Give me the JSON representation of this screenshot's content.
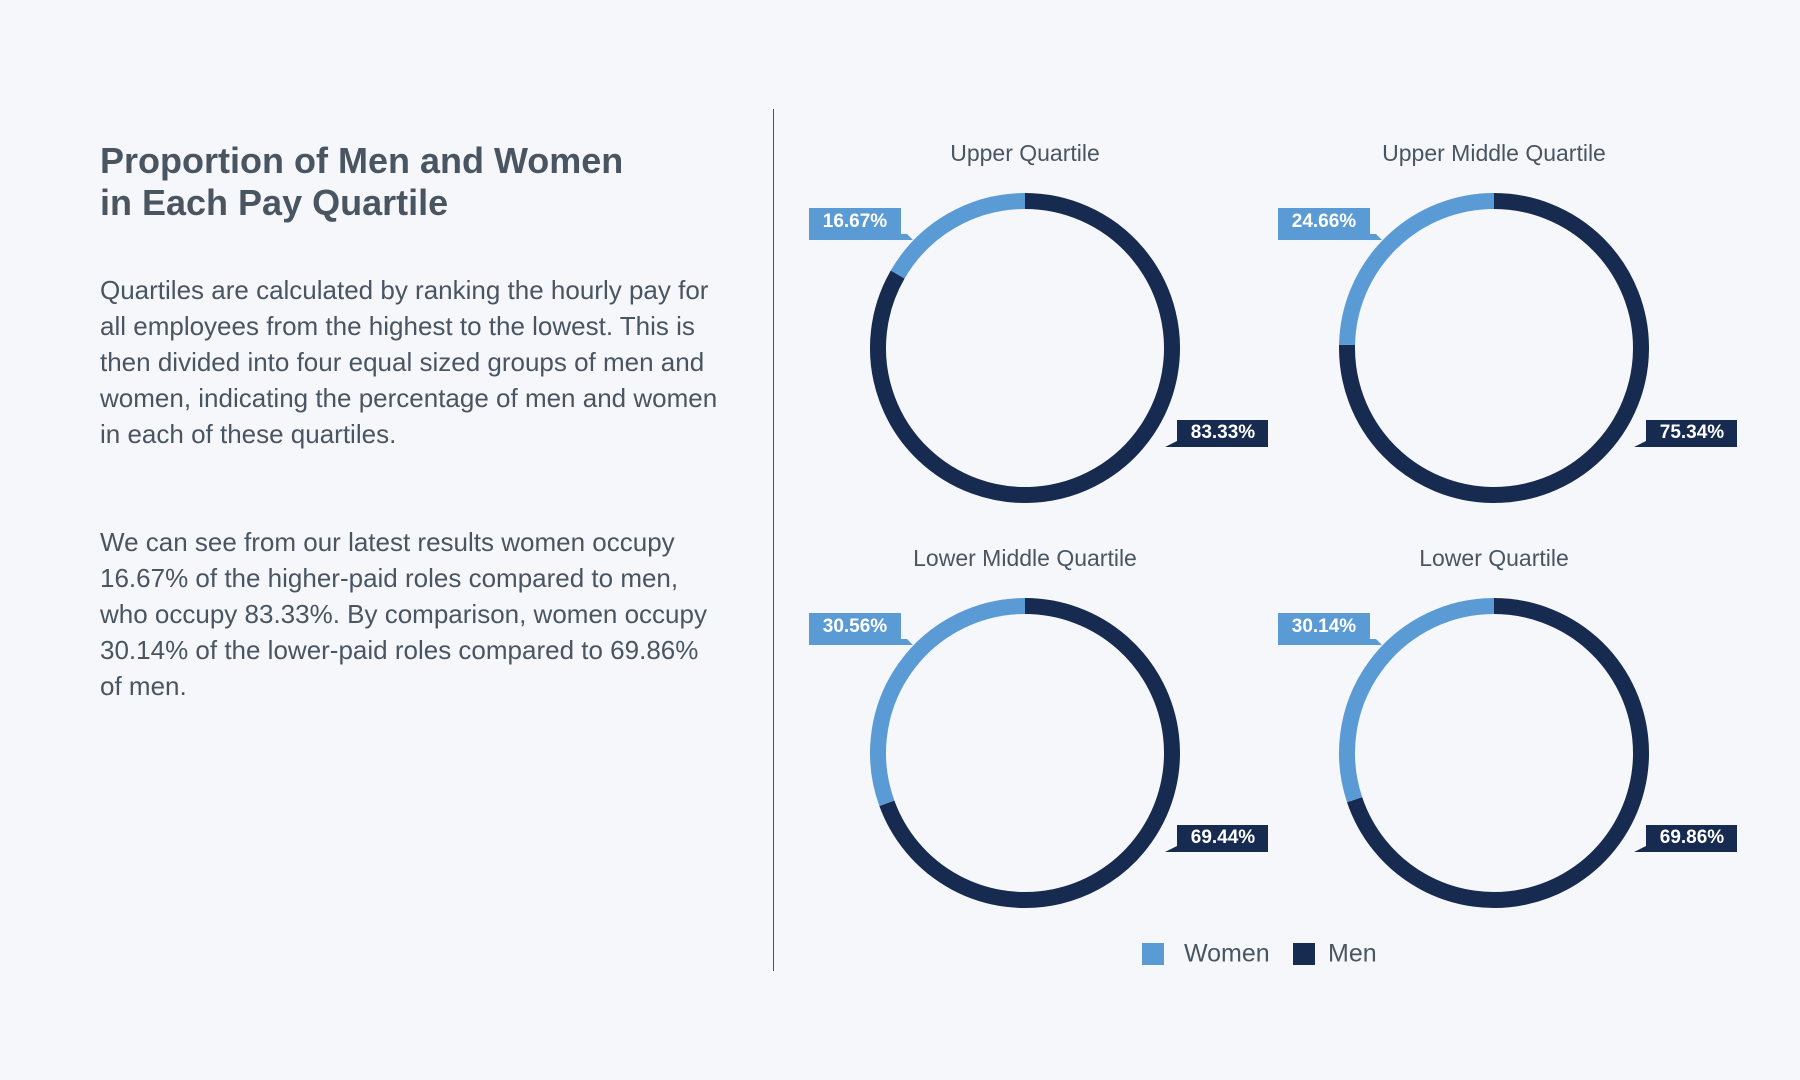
{
  "heading": {
    "title": "Proportion of Men and Women in Each Pay Quartile"
  },
  "paragraphs": [
    "Quartiles are calculated by ranking the hourly pay for all employees from the highest to the lowest. This is then divided into four equal sized groups of men and women, indicating the percentage of men and women in each of these quartiles.",
    "We can see from our latest results women occupy 16.67% of the higher-paid roles compared to men, who occupy 83.33%. By comparison, women occupy 30.14% of the lower-paid roles compared to 69.86% of men."
  ],
  "chart_data": [
    {
      "type": "pie",
      "title": "Upper Quartile",
      "categories": [
        "Women",
        "Men"
      ],
      "values": [
        16.67,
        83.33
      ],
      "value_labels": [
        "16.67%",
        "83.33%"
      ],
      "colors": [
        "#5b9bd5",
        "#172a4f"
      ]
    },
    {
      "type": "pie",
      "title": "Upper Middle Quartile",
      "categories": [
        "Women",
        "Men"
      ],
      "values": [
        24.66,
        75.34
      ],
      "value_labels": [
        "24.66%",
        "75.34%"
      ],
      "colors": [
        "#5b9bd5",
        "#172a4f"
      ]
    },
    {
      "type": "pie",
      "title": "Lower Middle Quartile",
      "categories": [
        "Women",
        "Men"
      ],
      "values": [
        30.56,
        69.44
      ],
      "value_labels": [
        "30.56%",
        "69.44%"
      ],
      "colors": [
        "#5b9bd5",
        "#172a4f"
      ]
    },
    {
      "type": "pie",
      "title": "Lower Quartile",
      "categories": [
        "Women",
        "Men"
      ],
      "values": [
        30.14,
        69.86
      ],
      "value_labels": [
        "30.14%",
        "69.86%"
      ],
      "colors": [
        "#5b9bd5",
        "#172a4f"
      ]
    }
  ]
}
